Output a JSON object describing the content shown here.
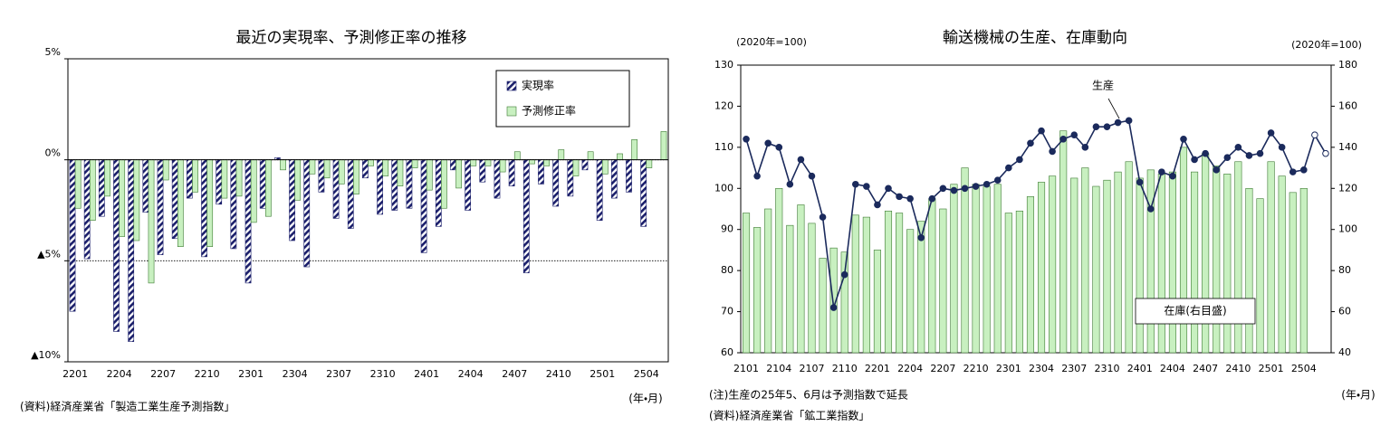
{
  "chart_data": [
    {
      "type": "bar",
      "title": "最近の実現率、予測修正率の推移",
      "categories": [
        "2201",
        null,
        null,
        "2204",
        null,
        null,
        "2207",
        null,
        null,
        "2210",
        null,
        null,
        "2301",
        null,
        null,
        "2304",
        null,
        null,
        "2307",
        null,
        null,
        "2310",
        null,
        null,
        "2401",
        null,
        null,
        "2404",
        null,
        null,
        "2407",
        null,
        null,
        "2410",
        null,
        null,
        "2501",
        null,
        null,
        "2504",
        null
      ],
      "series": [
        {
          "name": "実現率",
          "color": "#1b1f6b",
          "pattern": "hatch",
          "values": [
            -7.5,
            -4.9,
            -2.8,
            -8.5,
            -9.0,
            -2.6,
            -4.7,
            -3.9,
            -1.9,
            -4.8,
            -2.2,
            -4.4,
            -6.1,
            -2.4,
            0.1,
            -4.0,
            -5.3,
            -1.6,
            -2.9,
            -3.4,
            -0.9,
            -2.7,
            -2.5,
            -2.4,
            -4.6,
            -3.3,
            -0.5,
            -2.5,
            -1.1,
            -1.9,
            -1.3,
            -5.6,
            -1.2,
            -2.3,
            -1.8,
            -0.5,
            -3.0,
            -1.9,
            -1.6,
            -3.3,
            null
          ]
        },
        {
          "name": "予測修正率",
          "color": "#c8f0c0",
          "values": [
            -2.4,
            -3.0,
            -1.8,
            -3.8,
            -4.0,
            -6.1,
            -1.0,
            -4.3,
            -1.6,
            -4.3,
            -1.9,
            -1.8,
            -3.1,
            -2.8,
            -0.5,
            -2.0,
            -0.7,
            -0.9,
            -1.2,
            -1.7,
            -0.3,
            -0.8,
            -1.3,
            -0.4,
            -1.5,
            -2.4,
            -1.4,
            -0.3,
            -0.3,
            -0.6,
            0.4,
            -0.2,
            -0.3,
            0.5,
            -0.8,
            0.4,
            -0.7,
            0.3,
            1.0,
            -0.4,
            1.4
          ]
        }
      ],
      "ylim": [
        -10,
        5
      ],
      "yticks": [
        {
          "value": 5,
          "label": "5%"
        },
        {
          "value": 0,
          "label": "0%"
        },
        {
          "value": -5,
          "label": "▲5%"
        },
        {
          "value": -10,
          "label": "▲10%"
        }
      ],
      "grid": true,
      "legend": "top-right",
      "x_label": "(年・月)",
      "notes": [
        "(資料)経済産業省「製造工業生産予測指数」"
      ]
    },
    {
      "type": "bar_line",
      "title": "輸送機械の生産、在庫動向",
      "categories": [
        "2101",
        null,
        null,
        "2104",
        null,
        null,
        "2107",
        null,
        null,
        "2110",
        null,
        null,
        "2201",
        null,
        null,
        "2204",
        null,
        null,
        "2207",
        null,
        null,
        "2210",
        null,
        null,
        "2301",
        null,
        null,
        "2304",
        null,
        null,
        "2307",
        null,
        null,
        "2310",
        null,
        null,
        "2401",
        null,
        null,
        "2404",
        null,
        null,
        "2407",
        null,
        null,
        "2410",
        null,
        null,
        "2501",
        null,
        null,
        "2504",
        null,
        null
      ],
      "series": [
        {
          "name": "生産",
          "type": "line",
          "color": "#1b2a5c",
          "hollow_markers": [
            52,
            53
          ],
          "values": [
            112,
            103,
            111,
            110,
            101,
            107,
            103,
            93,
            71,
            79,
            101,
            100.5,
            96,
            100,
            98,
            97.5,
            88,
            97.5,
            100,
            99.5,
            100,
            100.5,
            101,
            102,
            105,
            107,
            111,
            114,
            109,
            112,
            113,
            110,
            115,
            115,
            116,
            116.5,
            101.5,
            95,
            104,
            103,
            112,
            107,
            108.5,
            104.5,
            107.5,
            110,
            108,
            108.5,
            113.5,
            110,
            104,
            104.5,
            113,
            108.5
          ]
        },
        {
          "name": "在庫(右目盛)",
          "type": "bar",
          "axis": "y2",
          "color": "#c8f0c0",
          "values": [
            108,
            101,
            110,
            120,
            102,
            112,
            103,
            86,
            91,
            89,
            107,
            106,
            90,
            109,
            108,
            100,
            104,
            115,
            110,
            122,
            130,
            122,
            121,
            122,
            108,
            109,
            116,
            123,
            126,
            148,
            125,
            130,
            121,
            124,
            128,
            133,
            125,
            129,
            127,
            128,
            140,
            128,
            137,
            131,
            127,
            133,
            120,
            115,
            133,
            126,
            118,
            120,
            null,
            null
          ]
        }
      ],
      "ylim": [
        60,
        130
      ],
      "yticks": [
        60,
        70,
        80,
        90,
        100,
        110,
        120,
        130
      ],
      "y2lim": [
        40,
        180
      ],
      "y2ticks": [
        40,
        60,
        80,
        100,
        120,
        140,
        160,
        180
      ],
      "y_label": "(2020年=100)",
      "y2_label": "(2020年=100)",
      "x_label": "(年・月)",
      "notes": [
        "(注)生産の25年5、6月は予測指数で延長",
        "(資料)経済産業省「鉱工業指数」"
      ]
    }
  ]
}
